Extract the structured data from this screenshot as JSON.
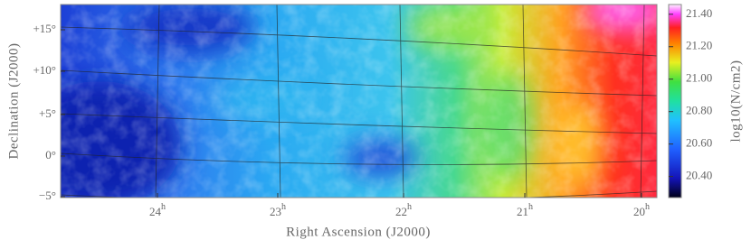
{
  "map": {
    "x_axis_label": "Right Ascension (J2000)",
    "y_axis_label": "Declination (J2000)",
    "x_ticks": [
      {
        "hours": "24",
        "unit": "h"
      },
      {
        "hours": "23",
        "unit": "h"
      },
      {
        "hours": "22",
        "unit": "h"
      },
      {
        "hours": "21",
        "unit": "h"
      },
      {
        "hours": "20",
        "unit": "h"
      }
    ],
    "y_ticks": [
      "+15°",
      "+10°",
      "+5°",
      "0°",
      "−5°"
    ],
    "colorbar": {
      "label": "log10(N/cm2)",
      "lim": [
        20.27,
        21.46
      ],
      "ticks": [
        {
          "value": 21.4,
          "label": "21.40"
        },
        {
          "value": 21.2,
          "label": "21.20"
        },
        {
          "value": 21.0,
          "label": "21.00"
        },
        {
          "value": 20.8,
          "label": "20.80"
        },
        {
          "value": 20.6,
          "label": "20.60"
        },
        {
          "value": 20.4,
          "label": "20.40"
        }
      ]
    }
  }
}
